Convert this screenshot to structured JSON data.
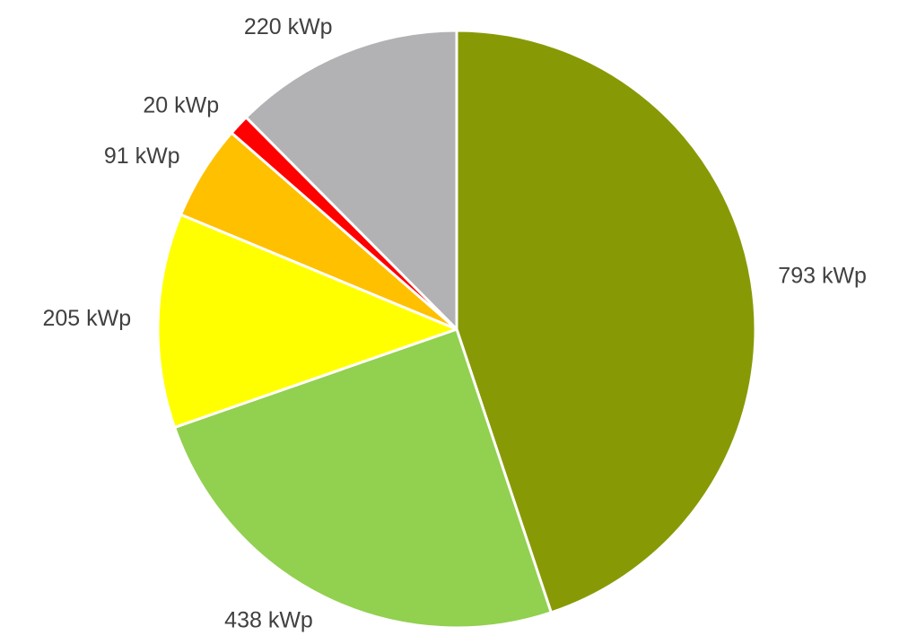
{
  "chart_data": {
    "type": "pie",
    "values": [
      793,
      438,
      205,
      91,
      20,
      220
    ],
    "value_labels": [
      "793 kWp",
      "438 kWp",
      "205 kWp",
      "91 kWp",
      "20 kWp",
      "220 kWp"
    ],
    "colors": [
      "#879a06",
      "#92d050",
      "#ffff00",
      "#ffc000",
      "#ff0000",
      "#b2b2b4"
    ]
  }
}
